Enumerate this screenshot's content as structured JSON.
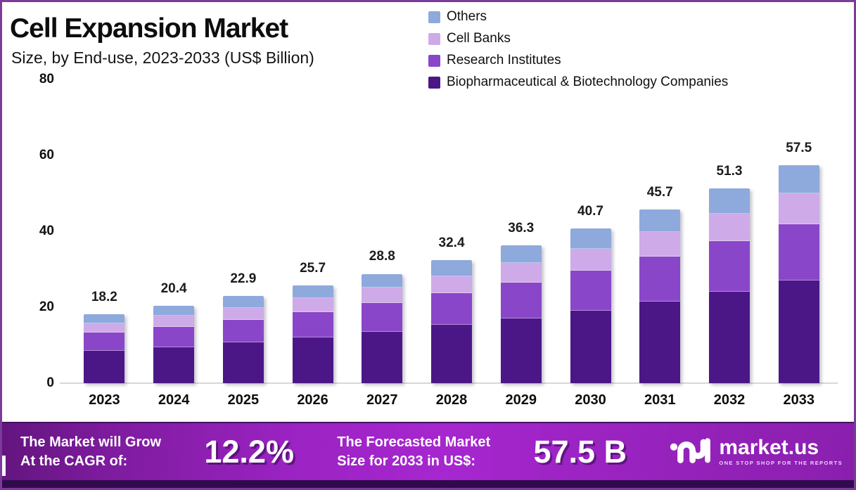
{
  "header": {
    "title": "Cell Expansion Market",
    "subtitle": "Size, by End-use, 2023-2033 (US$ Billion)"
  },
  "colors": {
    "others": "#8ea9dc",
    "cell_banks": "#cfaae8",
    "research_institutes": "#8946c9",
    "biopharma": "#4b1787",
    "frame_border": "#7c3b99",
    "banner_strip": "#310a4e",
    "baseline": "#d8d8d8"
  },
  "legend": [
    {
      "label": "Others",
      "color": "#8ea9dc"
    },
    {
      "label": "Cell Banks",
      "color": "#cfaae8"
    },
    {
      "label": "Research Institutes",
      "color": "#8946c9"
    },
    {
      "label": "Biopharmaceutical & Biotechnology Companies",
      "color": "#4b1787"
    }
  ],
  "chart_data": {
    "type": "bar",
    "stacked": true,
    "title": "Cell Expansion Market Size, by End-use, 2023-2033 (US$ Billion)",
    "xlabel": "",
    "ylabel": "",
    "ylim": [
      0,
      80
    ],
    "yticks": [
      0,
      20,
      40,
      60,
      80
    ],
    "grid": false,
    "legend_position": "top-right",
    "categories": [
      "2023",
      "2024",
      "2025",
      "2026",
      "2027",
      "2028",
      "2029",
      "2030",
      "2031",
      "2032",
      "2033"
    ],
    "totals": [
      18.2,
      20.4,
      22.9,
      25.7,
      28.8,
      32.4,
      36.3,
      40.7,
      45.7,
      51.3,
      57.5
    ],
    "series": [
      {
        "name": "Biopharmaceutical & Biotechnology Companies",
        "color": "#4b1787",
        "values": [
          8.6,
          9.5,
          10.7,
          12.1,
          13.6,
          15.3,
          17.1,
          19.1,
          21.5,
          24.1,
          27.0
        ]
      },
      {
        "name": "Research Institutes",
        "color": "#8946c9",
        "values": [
          4.7,
          5.3,
          6.0,
          6.7,
          7.5,
          8.4,
          9.4,
          10.6,
          11.9,
          13.3,
          14.9
        ]
      },
      {
        "name": "Cell Banks",
        "color": "#cfaae8",
        "values": [
          2.5,
          2.9,
          3.2,
          3.6,
          4.0,
          4.5,
          5.1,
          5.7,
          6.4,
          7.2,
          8.1
        ]
      },
      {
        "name": "Others",
        "color": "#8ea9dc",
        "values": [
          2.4,
          2.7,
          3.0,
          3.3,
          3.7,
          4.2,
          4.7,
          5.3,
          5.9,
          6.7,
          7.5
        ]
      }
    ]
  },
  "banner": {
    "cagr_line1": "The Market will Grow",
    "cagr_line2": "At the CAGR of:",
    "cagr_value": "12.2%",
    "forecast_line1": "The Forecasted Market",
    "forecast_line2": "Size for 2033 in US$:",
    "forecast_value": "57.5 B",
    "brand_name": "market.us",
    "brand_tagline": "ONE STOP SHOP FOR THE REPORTS"
  }
}
